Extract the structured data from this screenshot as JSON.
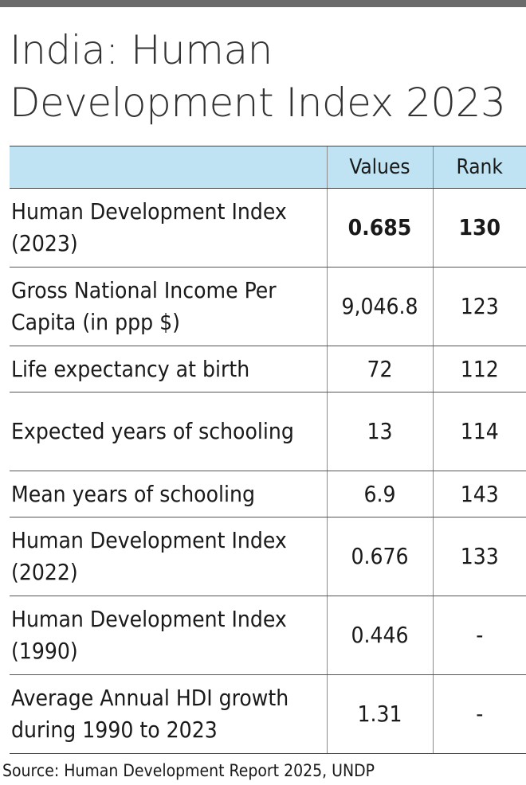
{
  "title": "India: Human Development Index 2023",
  "source": "Source: Human Development Report 2025, UNDP",
  "colors": {
    "header_fill": "#bfe3f2",
    "top_rule": "#6b6b6b"
  },
  "chart_data": {
    "type": "table",
    "title": "India: Human Development Index 2023",
    "columns": [
      "",
      "Values",
      "Rank"
    ],
    "rows": [
      {
        "label": "Human Development Index (2023)",
        "value": "0.685",
        "rank": "130",
        "bold": true
      },
      {
        "label": "Gross National Income Per Capita (in ppp $)",
        "value": "9,046.8",
        "rank": "123",
        "bold": false
      },
      {
        "label": "Life expectancy at birth",
        "value": "72",
        "rank": "112",
        "bold": false
      },
      {
        "label": "Expected years of schooling",
        "value": "13",
        "rank": "114",
        "bold": false
      },
      {
        "label": "Mean years of schooling",
        "value": "6.9",
        "rank": "143",
        "bold": false
      },
      {
        "label": "Human Development Index (2022)",
        "value": "0.676",
        "rank": "133",
        "bold": false
      },
      {
        "label": "Human Development Index (1990)",
        "value": "0.446",
        "rank": "-",
        "bold": false
      },
      {
        "label": "Average Annual HDI growth during 1990 to 2023",
        "value": "1.31",
        "rank": "-",
        "bold": false
      }
    ]
  }
}
